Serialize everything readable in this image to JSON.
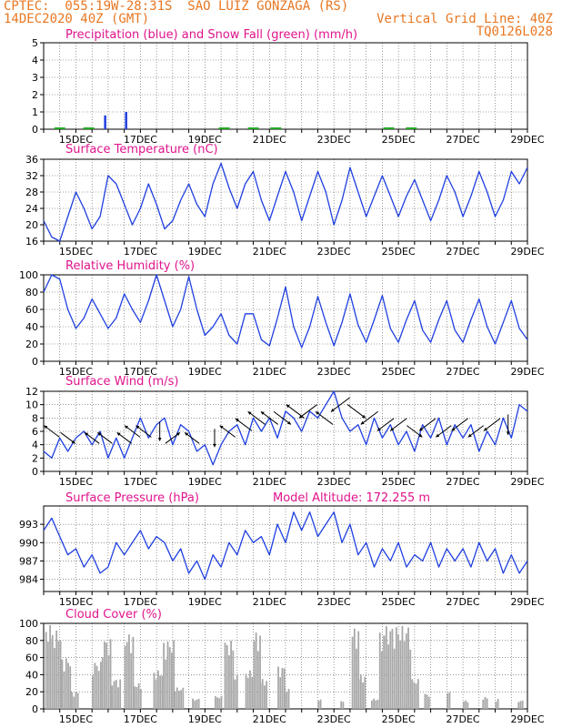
{
  "header": {
    "line1_left": "CPTEC:  055:19W-28:31S  SAO LUIZ GONZAGA (RS)",
    "line2_left": "14DEC2020 40Z (GMT)",
    "line2_right": "Vertical Grid Line: 40Z",
    "line3_right": "TQ0126L028"
  },
  "colors": {
    "header": "#e87722",
    "title": "#e0148c",
    "line": "#1f3fe0",
    "snow": "#22aa22",
    "cloud": "#a8a8a8",
    "arrow": "#000000"
  },
  "x_tick_labels": [
    "15DEC",
    "17DEC",
    "19DEC",
    "21DEC",
    "23DEC",
    "25DEC",
    "27DEC",
    "29DEC"
  ],
  "chart_data": [
    {
      "id": "precip",
      "type": "bar",
      "title": "Precipitation (blue) and Snow Fall (green) (mm/h)",
      "x_range_days": [
        14.0,
        29.0
      ],
      "ylim": [
        0,
        5
      ],
      "yticks": [
        0,
        1,
        2,
        3,
        4,
        5
      ],
      "series": [
        {
          "name": "Precipitation",
          "points": [
            [
              15.9,
              0.8
            ],
            [
              16.55,
              1.0
            ]
          ]
        },
        {
          "name": "Snow Fall",
          "points": [
            [
              14.5,
              0.05
            ],
            [
              15.4,
              0.05
            ],
            [
              19.6,
              0.05
            ],
            [
              20.5,
              0.05
            ],
            [
              21.2,
              0.05
            ],
            [
              24.7,
              0.05
            ],
            [
              25.4,
              0.05
            ]
          ]
        }
      ]
    },
    {
      "id": "temp",
      "type": "line",
      "title": "Surface Temperature (nC)",
      "ylim": [
        16,
        36
      ],
      "yticks": [
        16,
        20,
        24,
        28,
        32,
        36
      ],
      "x": [
        14.0,
        14.25,
        14.5,
        14.75,
        15.0,
        15.25,
        15.5,
        15.75,
        16.0,
        16.25,
        16.5,
        16.75,
        17.0,
        17.25,
        17.5,
        17.75,
        18.0,
        18.25,
        18.5,
        18.75,
        19.0,
        19.25,
        19.5,
        19.75,
        20.0,
        20.25,
        20.5,
        20.75,
        21.0,
        21.25,
        21.5,
        21.75,
        22.0,
        22.25,
        22.5,
        22.75,
        23.0,
        23.25,
        23.5,
        23.75,
        24.0,
        24.25,
        24.5,
        24.75,
        25.0,
        25.25,
        25.5,
        25.75,
        26.0,
        26.25,
        26.5,
        26.75,
        27.0,
        27.25,
        27.5,
        27.75,
        28.0,
        28.25,
        28.5,
        28.75,
        29.0
      ],
      "y": [
        21,
        17,
        16,
        22,
        28,
        24,
        19,
        22,
        32,
        30,
        25,
        20,
        24,
        30,
        25,
        19,
        21,
        26,
        30,
        25,
        22,
        30,
        35,
        29,
        24,
        30,
        33,
        26,
        21,
        27,
        33,
        28,
        21,
        27,
        33,
        28,
        20,
        26,
        34,
        28,
        22,
        27,
        32,
        27,
        22,
        27,
        31,
        26,
        21,
        26,
        32,
        28,
        22,
        27,
        33,
        28,
        22,
        26,
        33,
        30,
        34
      ]
    },
    {
      "id": "rh",
      "type": "line",
      "title": "Relative Humidity (%)",
      "ylim": [
        0,
        100
      ],
      "yticks": [
        0,
        20,
        40,
        60,
        80,
        100
      ],
      "x": [
        14.0,
        14.25,
        14.5,
        14.75,
        15.0,
        15.25,
        15.5,
        15.75,
        16.0,
        16.25,
        16.5,
        16.75,
        17.0,
        17.25,
        17.5,
        17.75,
        18.0,
        18.25,
        18.5,
        18.75,
        19.0,
        19.25,
        19.5,
        19.75,
        20.0,
        20.25,
        20.5,
        20.75,
        21.0,
        21.25,
        21.5,
        21.75,
        22.0,
        22.25,
        22.5,
        22.75,
        23.0,
        23.25,
        23.5,
        23.75,
        24.0,
        24.25,
        24.5,
        24.75,
        25.0,
        25.25,
        25.5,
        25.75,
        26.0,
        26.25,
        26.5,
        26.75,
        27.0,
        27.25,
        27.5,
        27.75,
        28.0,
        28.25,
        28.5,
        28.75,
        29.0
      ],
      "y": [
        80,
        100,
        95,
        60,
        38,
        50,
        72,
        55,
        38,
        50,
        78,
        60,
        45,
        70,
        100,
        70,
        40,
        60,
        98,
        60,
        30,
        40,
        55,
        30,
        20,
        55,
        55,
        25,
        18,
        50,
        86,
        40,
        16,
        40,
        75,
        45,
        18,
        45,
        78,
        42,
        22,
        48,
        76,
        38,
        22,
        48,
        70,
        36,
        22,
        48,
        70,
        36,
        22,
        48,
        72,
        40,
        20,
        45,
        70,
        38,
        25
      ]
    },
    {
      "id": "wind",
      "type": "line",
      "title": "Surface Wind (m/s)",
      "ylim": [
        0,
        12
      ],
      "yticks": [
        0,
        2,
        4,
        6,
        8,
        10,
        12
      ],
      "x": [
        14.0,
        14.25,
        14.5,
        14.75,
        15.0,
        15.25,
        15.5,
        15.75,
        16.0,
        16.25,
        16.5,
        16.75,
        17.0,
        17.25,
        17.5,
        17.75,
        18.0,
        18.25,
        18.5,
        18.75,
        19.0,
        19.25,
        19.5,
        19.75,
        20.0,
        20.25,
        20.5,
        20.75,
        21.0,
        21.25,
        21.5,
        21.75,
        22.0,
        22.25,
        22.5,
        22.75,
        23.0,
        23.25,
        23.5,
        23.75,
        24.0,
        24.25,
        24.5,
        24.75,
        25.0,
        25.25,
        25.5,
        25.75,
        26.0,
        26.25,
        26.5,
        26.75,
        27.0,
        27.25,
        27.5,
        27.75,
        28.0,
        28.25,
        28.5,
        28.75,
        29.0
      ],
      "y": [
        3,
        2,
        5,
        3,
        5,
        6,
        4,
        6,
        2,
        5,
        2,
        5,
        8,
        5,
        7,
        8,
        4,
        7,
        6,
        3,
        4,
        1,
        4,
        6,
        7,
        4,
        8,
        6,
        8,
        5,
        9,
        8,
        6,
        9,
        8,
        10,
        12,
        8,
        6,
        7,
        4,
        8,
        5,
        7,
        4,
        6,
        3,
        7,
        5,
        8,
        4,
        7,
        5,
        7,
        3,
        6,
        4,
        8,
        5,
        10,
        9
      ],
      "vectors": [
        {
          "x": 14.25,
          "speed": 6,
          "dir": "NW"
        },
        {
          "x": 14.75,
          "speed": 5,
          "dir": "SE"
        },
        {
          "x": 15.5,
          "speed": 5,
          "dir": "NW"
        },
        {
          "x": 15.9,
          "speed": 5,
          "dir": "NW"
        },
        {
          "x": 16.5,
          "speed": 5,
          "dir": "NW"
        },
        {
          "x": 16.75,
          "speed": 6,
          "dir": "NW"
        },
        {
          "x": 17.1,
          "speed": 6,
          "dir": "NW"
        },
        {
          "x": 17.6,
          "speed": 6,
          "dir": "S"
        },
        {
          "x": 18.0,
          "speed": 5,
          "dir": "NE"
        },
        {
          "x": 18.6,
          "speed": 5,
          "dir": "NW"
        },
        {
          "x": 19.3,
          "speed": 5,
          "dir": "S"
        },
        {
          "x": 19.7,
          "speed": 6,
          "dir": "NW"
        },
        {
          "x": 20.2,
          "speed": 7,
          "dir": "NW"
        },
        {
          "x": 20.6,
          "speed": 8,
          "dir": "NW"
        },
        {
          "x": 21.0,
          "speed": 8,
          "dir": "NW"
        },
        {
          "x": 21.4,
          "speed": 8,
          "dir": "SE"
        },
        {
          "x": 21.8,
          "speed": 9,
          "dir": "NW"
        },
        {
          "x": 22.2,
          "speed": 9,
          "dir": "SW"
        },
        {
          "x": 22.7,
          "speed": 8,
          "dir": "NW"
        },
        {
          "x": 23.2,
          "speed": 10,
          "dir": "SW"
        },
        {
          "x": 23.7,
          "speed": 9,
          "dir": "SE"
        },
        {
          "x": 24.1,
          "speed": 8,
          "dir": "SW"
        },
        {
          "x": 24.6,
          "speed": 7,
          "dir": "SW"
        },
        {
          "x": 25.0,
          "speed": 7,
          "dir": "SW"
        },
        {
          "x": 25.5,
          "speed": 6,
          "dir": "SE"
        },
        {
          "x": 25.9,
          "speed": 7,
          "dir": "SW"
        },
        {
          "x": 26.4,
          "speed": 6,
          "dir": "SW"
        },
        {
          "x": 26.9,
          "speed": 7,
          "dir": "SW"
        },
        {
          "x": 27.4,
          "speed": 6,
          "dir": "SW"
        },
        {
          "x": 27.9,
          "speed": 7,
          "dir": "SW"
        },
        {
          "x": 28.4,
          "speed": 7,
          "dir": "S"
        }
      ]
    },
    {
      "id": "pres",
      "type": "line",
      "title": "Surface Pressure (hPa)",
      "annotation": "Model Altitude: 172.255 m",
      "ylim": [
        982,
        996
      ],
      "yticks": [
        984,
        987,
        990,
        993
      ],
      "x": [
        14.0,
        14.25,
        14.5,
        14.75,
        15.0,
        15.25,
        15.5,
        15.75,
        16.0,
        16.25,
        16.5,
        16.75,
        17.0,
        17.25,
        17.5,
        17.75,
        18.0,
        18.25,
        18.5,
        18.75,
        19.0,
        19.25,
        19.5,
        19.75,
        20.0,
        20.25,
        20.5,
        20.75,
        21.0,
        21.25,
        21.5,
        21.75,
        22.0,
        22.25,
        22.5,
        22.75,
        23.0,
        23.25,
        23.5,
        23.75,
        24.0,
        24.25,
        24.5,
        24.75,
        25.0,
        25.25,
        25.5,
        25.75,
        26.0,
        26.25,
        26.5,
        26.75,
        27.0,
        27.25,
        27.5,
        27.75,
        28.0,
        28.25,
        28.5,
        28.75,
        29.0
      ],
      "y": [
        992,
        994,
        991,
        988,
        989,
        986,
        988,
        985,
        986,
        990,
        988,
        990,
        992,
        989,
        991,
        990,
        987,
        989,
        985,
        987,
        984,
        988,
        986,
        990,
        988,
        992,
        990,
        991,
        988,
        993,
        990,
        995,
        992,
        995,
        991,
        993,
        995,
        990,
        993,
        988,
        990,
        986,
        989,
        987,
        990,
        986,
        988,
        987,
        990,
        986,
        989,
        987,
        989,
        986,
        990,
        987,
        989,
        985,
        988,
        985,
        987
      ]
    },
    {
      "id": "cloud",
      "type": "bar",
      "title": "Cloud Cover (%)",
      "ylim": [
        0,
        100
      ],
      "yticks": [
        0,
        20,
        40,
        60,
        80,
        100
      ],
      "segments": [
        {
          "start": 14.05,
          "end": 14.25,
          "level": 98
        },
        {
          "start": 14.25,
          "end": 14.55,
          "level": 92
        },
        {
          "start": 14.55,
          "end": 14.85,
          "level": 60
        },
        {
          "start": 14.85,
          "end": 15.05,
          "level": 20
        },
        {
          "start": 15.5,
          "end": 15.8,
          "level": 55
        },
        {
          "start": 15.8,
          "end": 16.1,
          "level": 82
        },
        {
          "start": 16.1,
          "end": 16.4,
          "level": 35
        },
        {
          "start": 16.5,
          "end": 16.8,
          "level": 88
        },
        {
          "start": 16.8,
          "end": 17.0,
          "level": 30
        },
        {
          "start": 17.4,
          "end": 17.7,
          "level": 45
        },
        {
          "start": 17.7,
          "end": 18.05,
          "level": 80
        },
        {
          "start": 18.05,
          "end": 18.3,
          "level": 25
        },
        {
          "start": 18.6,
          "end": 18.8,
          "level": 12
        },
        {
          "start": 19.3,
          "end": 19.5,
          "level": 15
        },
        {
          "start": 19.6,
          "end": 19.85,
          "level": 80
        },
        {
          "start": 19.85,
          "end": 20.0,
          "level": 40
        },
        {
          "start": 20.25,
          "end": 20.5,
          "level": 45
        },
        {
          "start": 20.5,
          "end": 20.7,
          "level": 90
        },
        {
          "start": 20.7,
          "end": 20.9,
          "level": 35
        },
        {
          "start": 21.25,
          "end": 21.45,
          "level": 50
        },
        {
          "start": 21.45,
          "end": 21.6,
          "level": 25
        },
        {
          "start": 22.5,
          "end": 22.6,
          "level": 12
        },
        {
          "start": 23.2,
          "end": 23.3,
          "level": 10
        },
        {
          "start": 23.55,
          "end": 23.75,
          "level": 95
        },
        {
          "start": 23.75,
          "end": 23.95,
          "level": 40
        },
        {
          "start": 24.15,
          "end": 24.35,
          "level": 12
        },
        {
          "start": 24.4,
          "end": 24.6,
          "level": 90
        },
        {
          "start": 24.6,
          "end": 25.4,
          "level": 97
        },
        {
          "start": 25.4,
          "end": 25.6,
          "level": 35
        },
        {
          "start": 25.8,
          "end": 25.95,
          "level": 18
        },
        {
          "start": 26.5,
          "end": 26.6,
          "level": 20
        },
        {
          "start": 27.0,
          "end": 27.15,
          "level": 10
        },
        {
          "start": 27.6,
          "end": 27.75,
          "level": 14
        },
        {
          "start": 28.0,
          "end": 28.1,
          "level": 12
        },
        {
          "start": 28.7,
          "end": 28.85,
          "level": 10
        }
      ]
    }
  ]
}
